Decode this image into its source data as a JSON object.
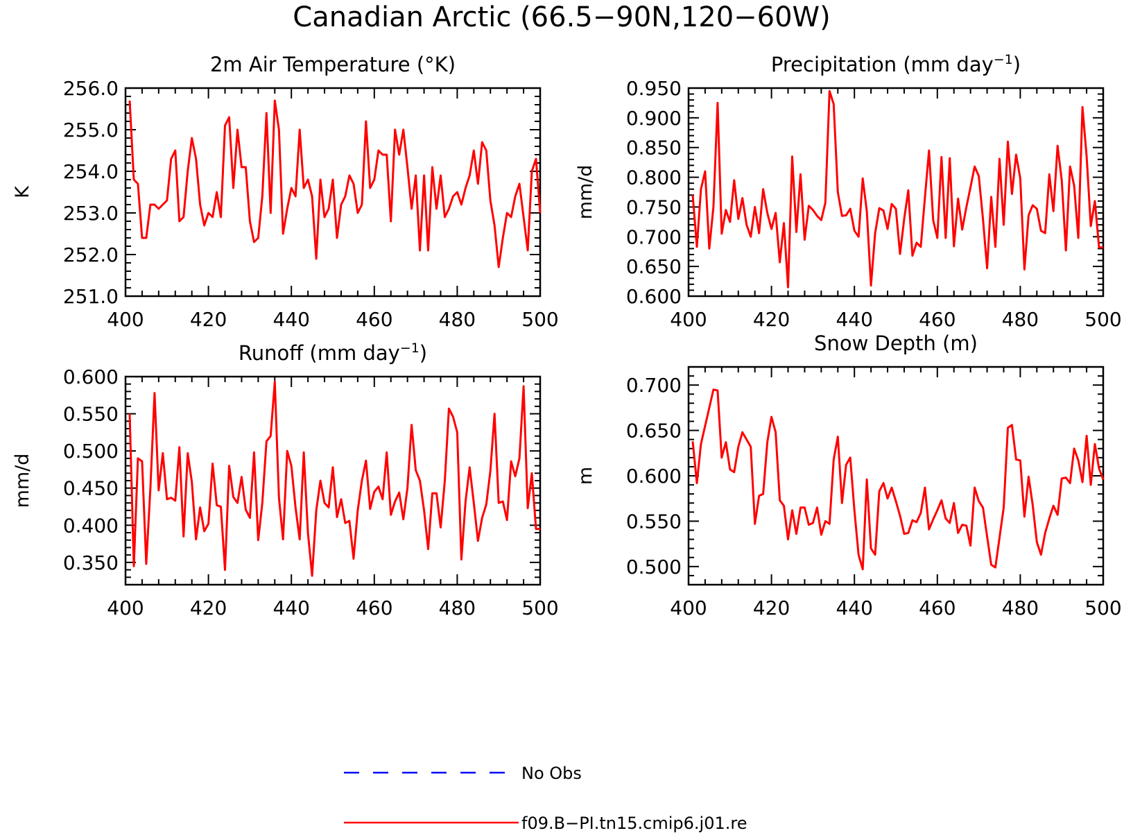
{
  "title": "Canadian Arctic (66.5−90N,120−60W)",
  "colors": {
    "model": "#ff0000",
    "obs": "#0000ff"
  },
  "legend": {
    "items": [
      {
        "label": "No Obs",
        "color": "#0000ff",
        "style": "dashed"
      },
      {
        "label": "f09.B−PI.tn15.cmip6.j01.re",
        "color": "#ff0000",
        "style": "solid"
      }
    ]
  },
  "chart_data": [
    {
      "type": "line",
      "title_main": "2m Air Temperature (°K)",
      "title_sup": "",
      "title_tail": "",
      "ylabel": "K",
      "xlim": [
        400,
        500
      ],
      "ylim": [
        251.0,
        256.0
      ],
      "xticks": [
        "400",
        "420",
        "440",
        "460",
        "480",
        "500"
      ],
      "yticks": [
        "251.0",
        "252.0",
        "253.0",
        "254.0",
        "255.0",
        "256.0"
      ],
      "series": [
        {
          "x": [
            401,
            402,
            403,
            404,
            405,
            406,
            407,
            408,
            409,
            410,
            411,
            412,
            413,
            414,
            415,
            416,
            417,
            418,
            419,
            420,
            421,
            422,
            423,
            424,
            425,
            426,
            427,
            428,
            429,
            430,
            431,
            432,
            433,
            434,
            435,
            436,
            437,
            438,
            439,
            440,
            441,
            442,
            443,
            444,
            445,
            446,
            447,
            448,
            449,
            450,
            451,
            452,
            453,
            454,
            455,
            456,
            457,
            458,
            459,
            460,
            461,
            462,
            463,
            464,
            465,
            466,
            467,
            468,
            469,
            470,
            471,
            472,
            473,
            474,
            475,
            476,
            477,
            478,
            479,
            480,
            481,
            482,
            483,
            484,
            485,
            486,
            487,
            488,
            489,
            490,
            491,
            492,
            493,
            494,
            495,
            496,
            497,
            498,
            499,
            500
          ],
          "values": [
            255.7,
            253.8,
            253.7,
            252.4,
            252.4,
            253.2,
            253.2,
            253.1,
            253.2,
            253.3,
            254.3,
            254.5,
            252.8,
            252.9,
            254.0,
            254.8,
            254.3,
            253.2,
            252.7,
            253.0,
            252.9,
            253.5,
            252.9,
            255.1,
            255.3,
            253.6,
            255.0,
            254.1,
            254.1,
            252.8,
            252.3,
            252.4,
            253.4,
            255.4,
            253.0,
            255.7,
            255.0,
            252.5,
            253.1,
            253.6,
            253.4,
            255.0,
            253.6,
            253.8,
            253.4,
            251.9,
            253.8,
            252.9,
            253.1,
            253.8,
            252.4,
            253.2,
            253.4,
            253.9,
            253.7,
            253.0,
            253.2,
            255.2,
            253.6,
            253.8,
            254.5,
            254.4,
            254.4,
            252.8,
            255.0,
            254.4,
            255.0,
            254.1,
            253.1,
            253.9,
            252.1,
            253.9,
            252.1,
            254.1,
            253.1,
            253.9,
            252.9,
            253.1,
            253.4,
            253.5,
            253.2,
            253.6,
            253.9,
            254.5,
            253.7,
            254.7,
            254.5,
            253.3,
            252.7,
            251.7,
            252.4,
            253.0,
            252.9,
            253.4,
            253.7,
            252.9,
            252.1,
            254.0,
            254.3,
            253.0
          ]
        }
      ]
    },
    {
      "type": "line",
      "title_main": "Precipitation (mm day",
      "title_sup": "−1",
      "title_tail": ")",
      "ylabel": "mm/d",
      "xlim": [
        400,
        500
      ],
      "ylim": [
        0.6,
        0.95
      ],
      "xticks": [
        "400",
        "420",
        "440",
        "460",
        "480",
        "500"
      ],
      "yticks": [
        "0.600",
        "0.650",
        "0.700",
        "0.750",
        "0.800",
        "0.850",
        "0.900",
        "0.950"
      ],
      "series": [
        {
          "x": [
            401,
            402,
            403,
            404,
            405,
            406,
            407,
            408,
            409,
            410,
            411,
            412,
            413,
            414,
            415,
            416,
            417,
            418,
            419,
            420,
            421,
            422,
            423,
            424,
            425,
            426,
            427,
            428,
            429,
            430,
            431,
            432,
            433,
            434,
            435,
            436,
            437,
            438,
            439,
            440,
            441,
            442,
            443,
            444,
            445,
            446,
            447,
            448,
            449,
            450,
            451,
            452,
            453,
            454,
            455,
            456,
            457,
            458,
            459,
            460,
            461,
            462,
            463,
            464,
            465,
            466,
            467,
            468,
            469,
            470,
            471,
            472,
            473,
            474,
            475,
            476,
            477,
            478,
            479,
            480,
            481,
            482,
            483,
            484,
            485,
            486,
            487,
            488,
            489,
            490,
            491,
            492,
            493,
            494,
            495,
            496,
            497,
            498,
            499,
            500
          ],
          "values": [
            0.77,
            0.683,
            0.78,
            0.81,
            0.68,
            0.75,
            0.925,
            0.705,
            0.745,
            0.725,
            0.795,
            0.73,
            0.765,
            0.72,
            0.7,
            0.75,
            0.706,
            0.78,
            0.74,
            0.713,
            0.74,
            0.657,
            0.723,
            0.615,
            0.835,
            0.708,
            0.805,
            0.695,
            0.752,
            0.745,
            0.735,
            0.728,
            0.757,
            0.945,
            0.923,
            0.775,
            0.735,
            0.736,
            0.747,
            0.71,
            0.7,
            0.798,
            0.743,
            0.618,
            0.706,
            0.748,
            0.744,
            0.713,
            0.755,
            0.747,
            0.671,
            0.73,
            0.778,
            0.668,
            0.69,
            0.683,
            0.766,
            0.845,
            0.728,
            0.698,
            0.834,
            0.698,
            0.832,
            0.684,
            0.764,
            0.712,
            0.75,
            0.783,
            0.818,
            0.802,
            0.73,
            0.647,
            0.767,
            0.683,
            0.831,
            0.72,
            0.86,
            0.772,
            0.838,
            0.798,
            0.645,
            0.736,
            0.753,
            0.747,
            0.71,
            0.706,
            0.805,
            0.743,
            0.853,
            0.795,
            0.677,
            0.818,
            0.786,
            0.698,
            0.918,
            0.835,
            0.718,
            0.76,
            0.682,
            0.682
          ]
        }
      ]
    },
    {
      "type": "line",
      "title_main": "Runoff (mm day",
      "title_sup": "−1",
      "title_tail": ")",
      "ylabel": "mm/d",
      "xlim": [
        400,
        500
      ],
      "ylim": [
        0.32,
        0.6
      ],
      "xticks": [
        "400",
        "420",
        "440",
        "460",
        "480",
        "500"
      ],
      "yticks": [
        "0.350",
        "0.400",
        "0.450",
        "0.500",
        "0.550",
        "0.600"
      ],
      "series": [
        {
          "x": [
            401,
            402,
            403,
            404,
            405,
            406,
            407,
            408,
            409,
            410,
            411,
            412,
            413,
            414,
            415,
            416,
            417,
            418,
            419,
            420,
            421,
            422,
            423,
            424,
            425,
            426,
            427,
            428,
            429,
            430,
            431,
            432,
            433,
            434,
            435,
            436,
            437,
            438,
            439,
            440,
            441,
            442,
            443,
            444,
            445,
            446,
            447,
            448,
            449,
            450,
            451,
            452,
            453,
            454,
            455,
            456,
            457,
            458,
            459,
            460,
            461,
            462,
            463,
            464,
            465,
            466,
            467,
            468,
            469,
            470,
            471,
            472,
            473,
            474,
            475,
            476,
            477,
            478,
            479,
            480,
            481,
            482,
            483,
            484,
            485,
            486,
            487,
            488,
            489,
            490,
            491,
            492,
            493,
            494,
            495,
            496,
            497,
            498,
            499,
            500
          ],
          "values": [
            0.55,
            0.345,
            0.49,
            0.486,
            0.348,
            0.45,
            0.578,
            0.447,
            0.497,
            0.435,
            0.437,
            0.433,
            0.505,
            0.385,
            0.497,
            0.458,
            0.381,
            0.424,
            0.392,
            0.402,
            0.483,
            0.427,
            0.425,
            0.34,
            0.48,
            0.438,
            0.43,
            0.465,
            0.421,
            0.41,
            0.498,
            0.38,
            0.43,
            0.513,
            0.52,
            0.593,
            0.437,
            0.381,
            0.5,
            0.48,
            0.424,
            0.381,
            0.498,
            0.39,
            0.332,
            0.42,
            0.46,
            0.43,
            0.424,
            0.478,
            0.411,
            0.435,
            0.403,
            0.406,
            0.355,
            0.42,
            0.46,
            0.487,
            0.422,
            0.445,
            0.452,
            0.435,
            0.498,
            0.414,
            0.432,
            0.444,
            0.408,
            0.45,
            0.535,
            0.474,
            0.46,
            0.42,
            0.368,
            0.443,
            0.443,
            0.397,
            0.46,
            0.557,
            0.546,
            0.525,
            0.354,
            0.432,
            0.478,
            0.43,
            0.379,
            0.41,
            0.428,
            0.473,
            0.55,
            0.43,
            0.432,
            0.407,
            0.486,
            0.466,
            0.49,
            0.587,
            0.423,
            0.47,
            0.395,
            0.395
          ]
        }
      ]
    },
    {
      "type": "line",
      "title_main": "Snow Depth (m)",
      "title_sup": "",
      "title_tail": "",
      "ylabel": "m",
      "xlim": [
        400,
        500
      ],
      "ylim": [
        0.48,
        0.72
      ],
      "xticks": [
        "400",
        "420",
        "440",
        "460",
        "480",
        "500"
      ],
      "yticks": [
        "0.500",
        "0.550",
        "0.600",
        "0.650",
        "0.700"
      ],
      "series": [
        {
          "x": [
            401,
            402,
            403,
            404,
            405,
            406,
            407,
            408,
            409,
            410,
            411,
            412,
            413,
            414,
            415,
            416,
            417,
            418,
            419,
            420,
            421,
            422,
            423,
            424,
            425,
            426,
            427,
            428,
            429,
            430,
            431,
            432,
            433,
            434,
            435,
            436,
            437,
            438,
            439,
            440,
            441,
            442,
            443,
            444,
            445,
            446,
            447,
            448,
            449,
            450,
            451,
            452,
            453,
            454,
            455,
            456,
            457,
            458,
            459,
            460,
            461,
            462,
            463,
            464,
            465,
            466,
            467,
            468,
            469,
            470,
            471,
            472,
            473,
            474,
            475,
            476,
            477,
            478,
            479,
            480,
            481,
            482,
            483,
            484,
            485,
            486,
            487,
            488,
            489,
            490,
            491,
            492,
            493,
            494,
            495,
            496,
            497,
            498,
            499,
            500
          ],
          "values": [
            0.638,
            0.592,
            0.635,
            0.655,
            0.675,
            0.695,
            0.694,
            0.62,
            0.637,
            0.607,
            0.604,
            0.632,
            0.648,
            0.64,
            0.632,
            0.547,
            0.578,
            0.58,
            0.637,
            0.665,
            0.648,
            0.573,
            0.567,
            0.53,
            0.562,
            0.536,
            0.565,
            0.565,
            0.546,
            0.548,
            0.565,
            0.535,
            0.55,
            0.547,
            0.618,
            0.643,
            0.57,
            0.612,
            0.62,
            0.562,
            0.513,
            0.497,
            0.596,
            0.52,
            0.513,
            0.583,
            0.592,
            0.575,
            0.587,
            0.572,
            0.556,
            0.536,
            0.537,
            0.551,
            0.549,
            0.559,
            0.587,
            0.541,
            0.552,
            0.562,
            0.573,
            0.553,
            0.548,
            0.57,
            0.537,
            0.546,
            0.545,
            0.523,
            0.587,
            0.572,
            0.565,
            0.533,
            0.502,
            0.499,
            0.532,
            0.565,
            0.653,
            0.656,
            0.618,
            0.617,
            0.555,
            0.599,
            0.568,
            0.527,
            0.513,
            0.537,
            0.553,
            0.567,
            0.557,
            0.597,
            0.598,
            0.592,
            0.63,
            0.617,
            0.593,
            0.644,
            0.59,
            0.635,
            0.608,
            0.596
          ]
        }
      ]
    }
  ]
}
